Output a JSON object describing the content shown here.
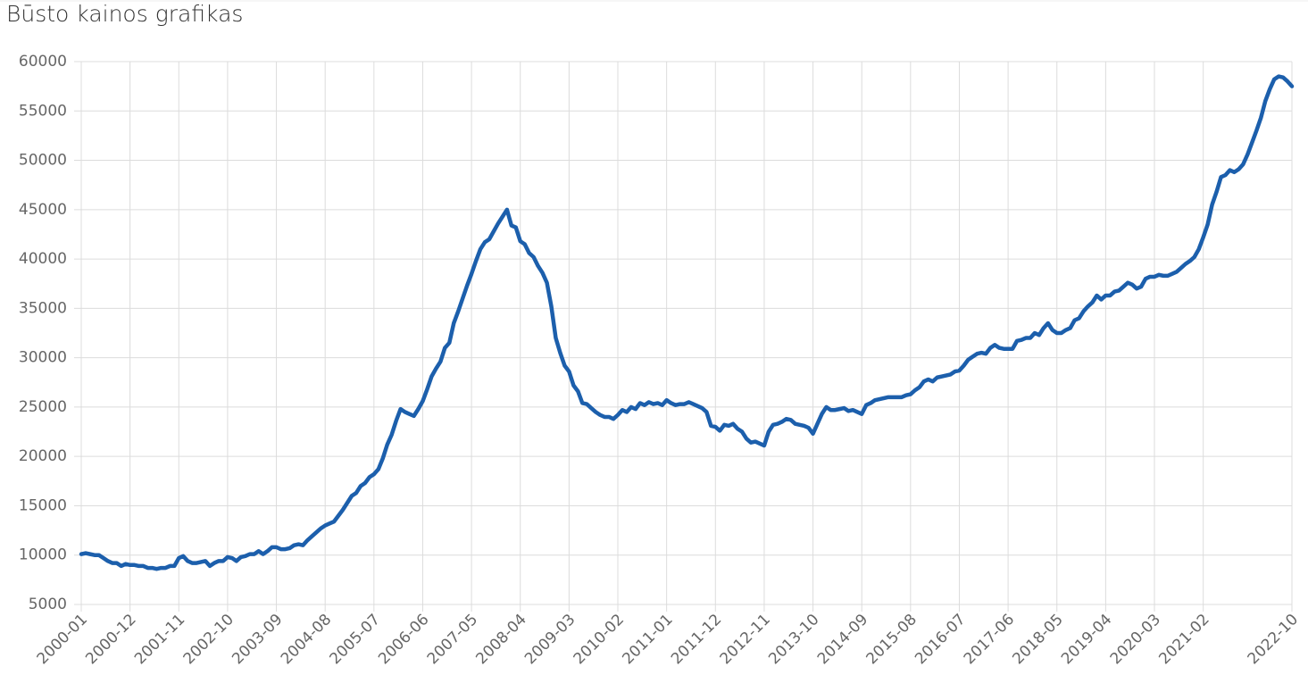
{
  "chart_data": {
    "type": "line",
    "title": "Būsto kainos grafikas",
    "categories": [
      "2000-01",
      null,
      null,
      null,
      null,
      null,
      null,
      null,
      null,
      null,
      null,
      "2000-12",
      null,
      null,
      null,
      null,
      null,
      null,
      null,
      null,
      null,
      null,
      "2001-11",
      null,
      null,
      null,
      null,
      null,
      null,
      null,
      null,
      null,
      null,
      "2002-10",
      null,
      null,
      null,
      null,
      null,
      null,
      null,
      null,
      null,
      null,
      "2003-09",
      null,
      null,
      null,
      null,
      null,
      null,
      null,
      null,
      null,
      null,
      "2004-08",
      null,
      null,
      null,
      null,
      null,
      null,
      null,
      null,
      null,
      null,
      "2005-07",
      null,
      null,
      null,
      null,
      null,
      null,
      null,
      null,
      null,
      null,
      "2006-06",
      null,
      null,
      null,
      null,
      null,
      null,
      null,
      null,
      null,
      null,
      "2007-05",
      null,
      null,
      null,
      null,
      null,
      null,
      null,
      null,
      null,
      null,
      "2008-04",
      null,
      null,
      null,
      null,
      null,
      null,
      null,
      null,
      null,
      null,
      "2009-03",
      null,
      null,
      null,
      null,
      null,
      null,
      null,
      null,
      null,
      null,
      "2010-02",
      null,
      null,
      null,
      null,
      null,
      null,
      null,
      null,
      null,
      null,
      "2011-01",
      null,
      null,
      null,
      null,
      null,
      null,
      null,
      null,
      null,
      null,
      "2011-12",
      null,
      null,
      null,
      null,
      null,
      null,
      null,
      null,
      null,
      null,
      "2012-11",
      null,
      null,
      null,
      null,
      null,
      null,
      null,
      null,
      null,
      null,
      "2013-10",
      null,
      null,
      null,
      null,
      null,
      null,
      null,
      null,
      null,
      null,
      "2014-09",
      null,
      null,
      null,
      null,
      null,
      null,
      null,
      null,
      null,
      null,
      "2015-08",
      null,
      null,
      null,
      null,
      null,
      null,
      null,
      null,
      null,
      null,
      "2016-07",
      null,
      null,
      null,
      null,
      null,
      null,
      null,
      null,
      null,
      null,
      "2017-06",
      null,
      null,
      null,
      null,
      null,
      null,
      null,
      null,
      null,
      null,
      "2018-05",
      null,
      null,
      null,
      null,
      null,
      null,
      null,
      null,
      null,
      null,
      "2019-04",
      null,
      null,
      null,
      null,
      null,
      null,
      null,
      null,
      null,
      null,
      "2020-03",
      null,
      null,
      null,
      null,
      null,
      null,
      null,
      null,
      null,
      null,
      "2021-02",
      null,
      null,
      null,
      null,
      null,
      null,
      null,
      null,
      null,
      null,
      null,
      null,
      null,
      null,
      null,
      null,
      null,
      null,
      null,
      "2022-10"
    ],
    "values": [
      10100,
      10200,
      10100,
      10000,
      10000,
      9700,
      9400,
      9200,
      9200,
      8900,
      9100,
      9000,
      9000,
      8900,
      8900,
      8700,
      8700,
      8600,
      8700,
      8700,
      8900,
      8900,
      9700,
      9900,
      9400,
      9200,
      9200,
      9300,
      9400,
      8900,
      9200,
      9400,
      9400,
      9800,
      9700,
      9400,
      9800,
      9900,
      10100,
      10100,
      10400,
      10100,
      10400,
      10800,
      10800,
      10600,
      10600,
      10700,
      11000,
      11100,
      11000,
      11500,
      11900,
      12300,
      12700,
      13000,
      13200,
      13400,
      14000,
      14600,
      15300,
      16000,
      16300,
      17000,
      17300,
      17900,
      18200,
      18700,
      19800,
      21200,
      22200,
      23600,
      24800,
      24500,
      24300,
      24100,
      24800,
      25600,
      26800,
      28100,
      28900,
      29600,
      31000,
      31500,
      33500,
      34700,
      36000,
      37300,
      38500,
      39800,
      41000,
      41700,
      42000,
      42800,
      43600,
      44300,
      45000,
      43400,
      43200,
      41800,
      41500,
      40600,
      40200,
      39300,
      38600,
      37600,
      35200,
      32000,
      30500,
      29200,
      28600,
      27200,
      26600,
      25400,
      25300,
      24900,
      24500,
      24200,
      24000,
      24000,
      23800,
      24200,
      24700,
      24500,
      25000,
      24800,
      25400,
      25200,
      25500,
      25300,
      25400,
      25200,
      25700,
      25400,
      25200,
      25300,
      25300,
      25500,
      25300,
      25100,
      24900,
      24500,
      23100,
      23000,
      22600,
      23200,
      23100,
      23300,
      22800,
      22500,
      21800,
      21400,
      21500,
      21300,
      21100,
      22500,
      23200,
      23300,
      23500,
      23800,
      23700,
      23300,
      23200,
      23100,
      22900,
      22300,
      23300,
      24300,
      25000,
      24700,
      24700,
      24800,
      24900,
      24600,
      24700,
      24500,
      24300,
      25200,
      25400,
      25700,
      25800,
      25900,
      26000,
      26000,
      26000,
      26000,
      26200,
      26300,
      26700,
      27000,
      27600,
      27800,
      27600,
      28000,
      28100,
      28200,
      28300,
      28600,
      28700,
      29200,
      29800,
      30100,
      30400,
      30500,
      30400,
      31000,
      31300,
      31000,
      30900,
      30900,
      30900,
      31700,
      31800,
      32000,
      32000,
      32500,
      32300,
      33000,
      33500,
      32800,
      32500,
      32500,
      32800,
      33000,
      33800,
      34000,
      34700,
      35200,
      35600,
      36300,
      35900,
      36300,
      36300,
      36700,
      36800,
      37200,
      37600,
      37400,
      37000,
      37200,
      38000,
      38200,
      38200,
      38400,
      38300,
      38300,
      38500,
      38700,
      39100,
      39500,
      39800,
      40200,
      41000,
      42200,
      43500,
      45500,
      46800,
      48300,
      48500,
      49000,
      48800,
      49100,
      49600,
      50600,
      51800,
      53000,
      54300,
      56000,
      57200,
      58200,
      58500,
      58400,
      58000,
      57500
    ],
    "color": "#1c5fac",
    "ylim": [
      5000,
      60000
    ],
    "yticks": [
      5000,
      10000,
      15000,
      20000,
      25000,
      30000,
      35000,
      40000,
      45000,
      50000,
      55000,
      60000
    ],
    "grid": true
  }
}
